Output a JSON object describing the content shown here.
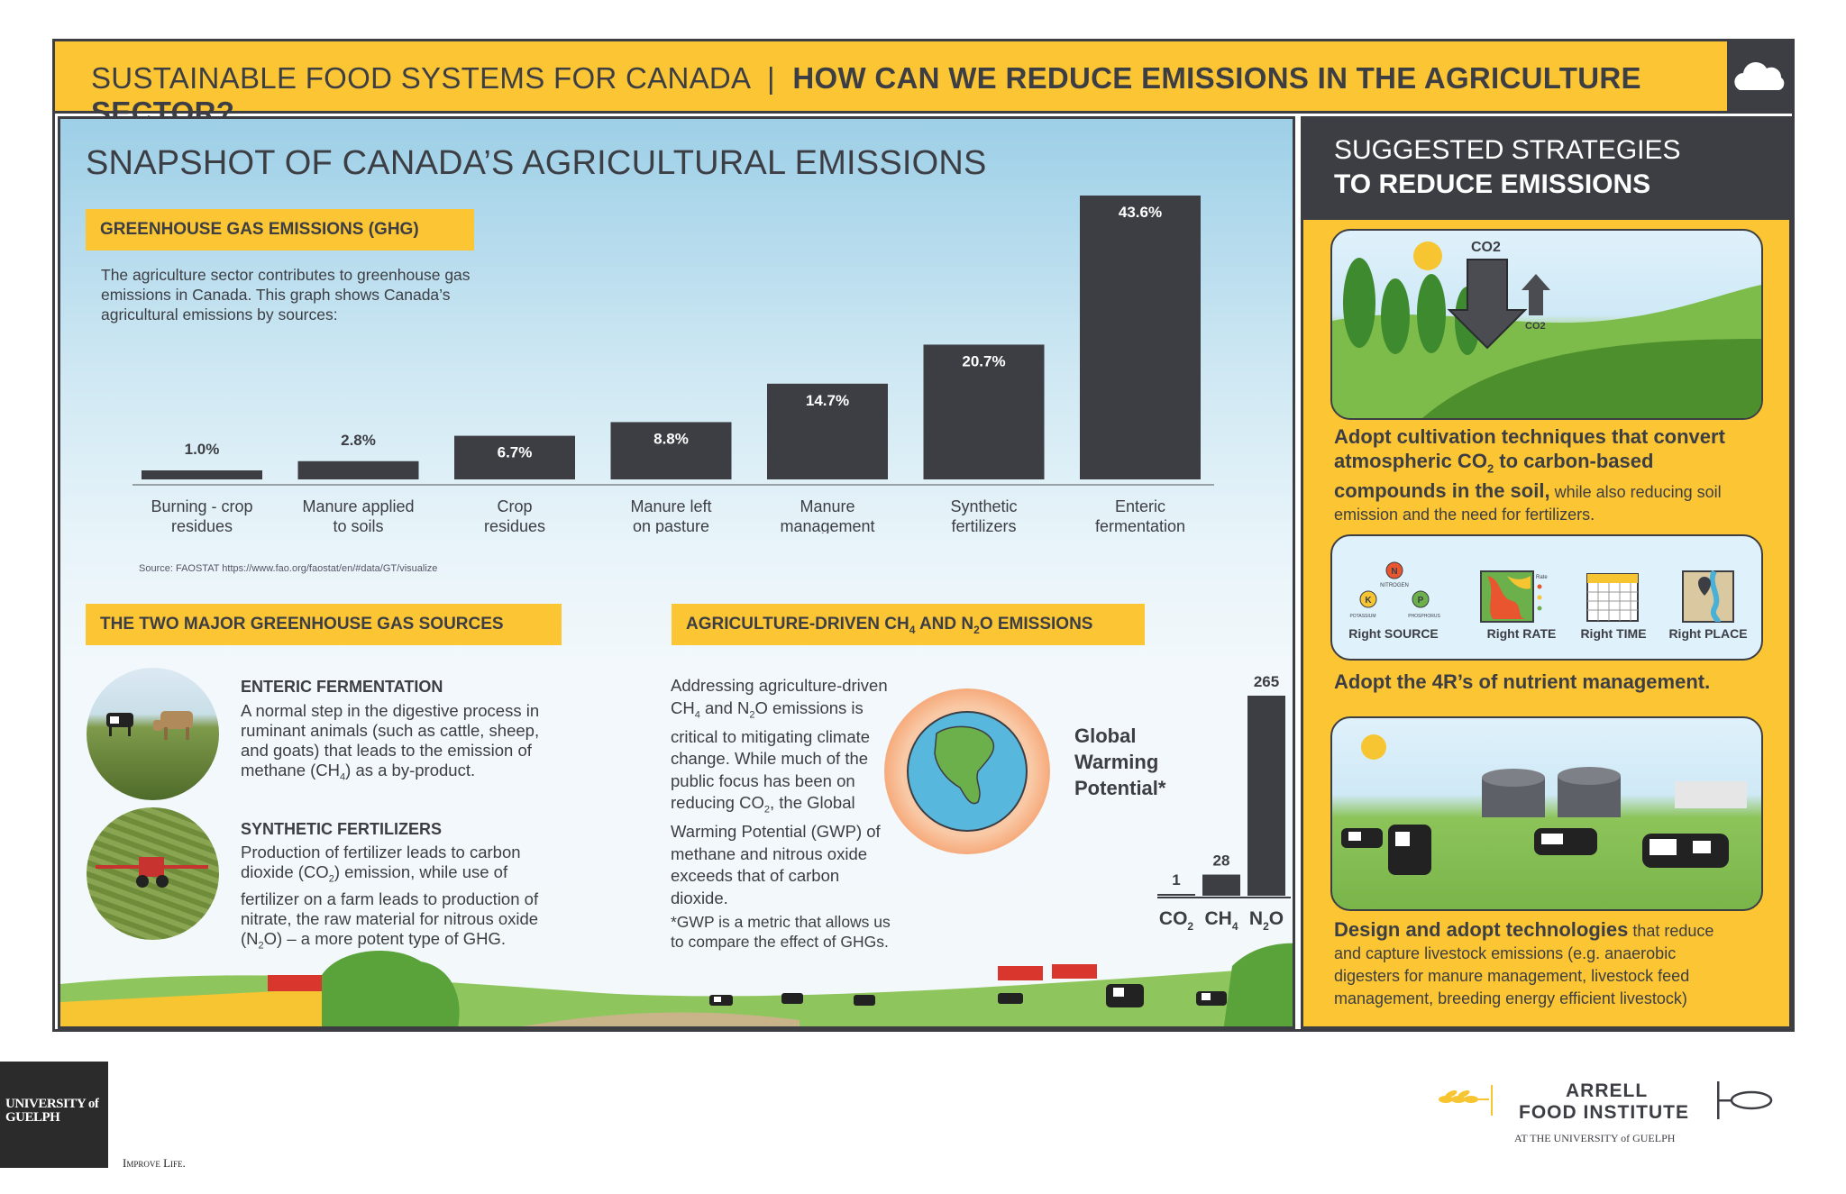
{
  "header": {
    "title_light": "SUSTAINABLE FOOD SYSTEMS FOR CANADA",
    "separator": "|",
    "title_bold": "HOW CAN WE REDUCE EMISSIONS IN THE AGRICULTURE SECTOR?"
  },
  "snapshot": {
    "heading": "SNAPSHOT OF CANADA’S AGRICULTURAL EMISSIONS",
    "ghg_label": "GREENHOUSE GAS EMISSIONS (GHG)",
    "intro": "The agriculture sector contributes to greenhouse gas emissions in Canada. This graph shows Canada’s agricultural emissions by sources:",
    "source": "Source: FAOSTAT https://www.fao.org/faostat/en/#data/GT/visualize"
  },
  "chart_data": [
    {
      "type": "bar",
      "categories": [
        "Burning - crop residues",
        "Manure applied to soils",
        "Crop residues",
        "Manure left on pasture",
        "Manure management",
        "Synthetic fertilizers",
        "Enteric fermentation"
      ],
      "category_lines": [
        [
          "Burning - crop",
          "residues"
        ],
        [
          "Manure applied",
          "to soils"
        ],
        [
          "Crop",
          "residues"
        ],
        [
          "Manure left",
          "on pasture"
        ],
        [
          "Manure",
          "management"
        ],
        [
          "Synthetic",
          "fertilizers"
        ],
        [
          "Enteric",
          "fermentation"
        ]
      ],
      "values": [
        1.0,
        2.8,
        6.7,
        8.8,
        14.7,
        20.7,
        43.6
      ],
      "value_labels": [
        "1.0%",
        "2.8%",
        "6.7%",
        "8.8%",
        "14.7%",
        "20.7%",
        "43.6%"
      ],
      "ylim": [
        0,
        43.6
      ],
      "colors": {
        "bar": "#3c3e44"
      }
    },
    {
      "type": "bar",
      "title_lines": [
        "Global",
        "Warming",
        "Potential*"
      ],
      "categories": [
        "CO2",
        "CH4",
        "N2O"
      ],
      "values": [
        1,
        28,
        265
      ],
      "value_labels": [
        "1",
        "28",
        "265"
      ],
      "ylim": [
        0,
        265
      ]
    }
  ],
  "sources": {
    "heading": "THE TWO MAJOR GREENHOUSE GAS SOURCES",
    "enteric_title": "ENTERIC FERMENTATION",
    "enteric_text": "A normal step in the digestive process in ruminant animals (such as cattle, sheep, and goats) that leads to the emission of methane (CH4) as a by-product.",
    "synthetic_title": "SYNTHETIC FERTILIZERS",
    "synthetic_text": "Production of fertilizer leads to carbon dioxide (CO2) emission, while use of fertilizer on a farm leads to production of nitrate, the raw material for nitrous oxide (N2O) – a more potent type of GHG."
  },
  "ch4n2o": {
    "heading": "AGRICULTURE-DRIVEN CH4 AND N2O EMISSIONS",
    "text": "Addressing agriculture-driven CH4 and N2O emissions is critical to mitigating climate change. While much of the public focus has been on reducing CO2, the Global Warming Potential (GWP) of methane and nitrous oxide exceeds that of carbon dioxide.",
    "footnote": "*GWP is a metric that allows us to compare the effect of GHGs."
  },
  "strategies": {
    "heading_light": "SUGGESTED STRATEGIES",
    "heading_bold": "TO REDUCE EMISSIONS",
    "co2_big": "CO2",
    "co2_small": "CO2",
    "s1_bold": "Adopt cultivation techniques that convert atmospheric CO2 to carbon-based compounds in the soil,",
    "s1_rest": " while also reducing soil emission and the need for fertilizers.",
    "tools": [
      "Right SOURCE",
      "Right RATE",
      "Right TIME",
      "Right PLACE"
    ],
    "nutrients": {
      "n": "N",
      "n_label": "NITROGEN",
      "k": "K",
      "k_label": "POTASSIUM",
      "p": "P",
      "p_label": "PHOSPHORUS",
      "rate": "Rate"
    },
    "s2": "Adopt the 4R’s of nutrient management.",
    "s3_bold": "Design and adopt technologies",
    "s3_rest": " that reduce and capture livestock emissions (e.g. anaerobic digesters for manure management, livestock feed management, breeding energy efficient livestock)"
  },
  "footer": {
    "ug_logo": "UNIVERSITY of GUELPH",
    "ug_tagline": "Improve Life.",
    "arrell_1": "ARRELL",
    "arrell_2": "FOOD INSTITUTE",
    "arrell_3": "AT THE UNIVERSITY of GUELPH"
  }
}
